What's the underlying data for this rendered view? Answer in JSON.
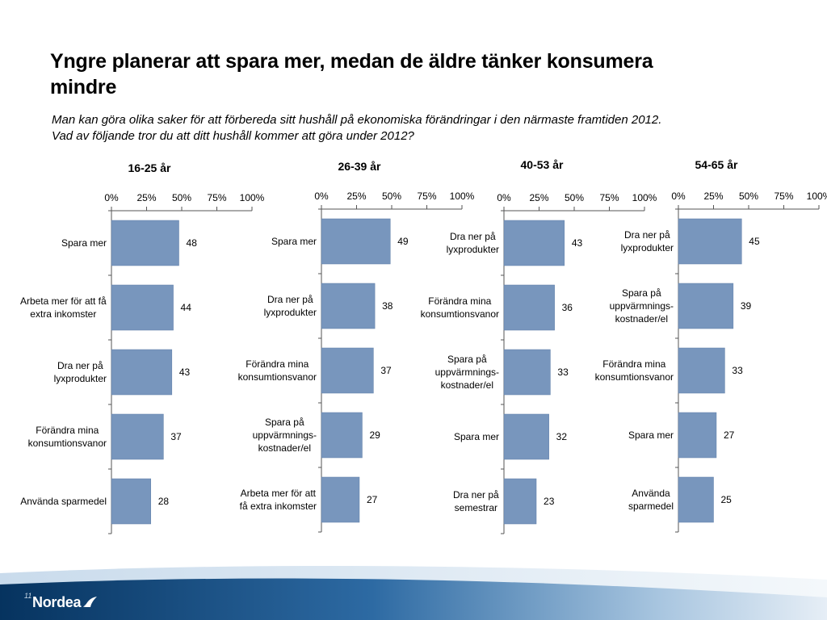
{
  "title": "Yngre planerar att spara mer, medan de äldre tänker konsumera\nmindre",
  "subtitle": "Man kan göra olika saker för att förbereda sitt hushåll på ekonomiska förändringar i den närmaste framtiden 2012.\nVad av följande tror du att ditt hushåll kommer att göra under 2012?",
  "footer": {
    "page_number": "11",
    "logo_text": "Nordea"
  },
  "colors": {
    "bar": "#7896bd",
    "bar_stroke": "#5f7ea8",
    "axis": "#555555",
    "band_dark": "#0a3a6b",
    "band_light": "#dce8f3"
  },
  "chart_data": [
    {
      "type": "bar",
      "orientation": "horizontal",
      "title": "16-25 år",
      "xlim": [
        0,
        100
      ],
      "ticks": [
        "0%",
        "25%",
        "50%",
        "75%",
        "100%"
      ],
      "categories": [
        "Spara mer",
        "Arbeta mer för att få\nextra inkomster",
        "Dra ner på\nlyxprodukter",
        "Förändra mina\nkonsumtionsvanor",
        "Använda sparmedel"
      ],
      "values": [
        48,
        44,
        43,
        37,
        28
      ]
    },
    {
      "type": "bar",
      "orientation": "horizontal",
      "title": "26-39 år",
      "xlim": [
        0,
        100
      ],
      "ticks": [
        "0%",
        "25%",
        "50%",
        "75%",
        "100%"
      ],
      "categories": [
        "Spara mer",
        "Dra ner på\nlyxprodukter",
        "Förändra mina\nkonsumtionsvanor",
        "Spara på\nuppvärmnings-\nkostnader/el",
        "Arbeta mer för att\nfå extra inkomster"
      ],
      "values": [
        49,
        38,
        37,
        29,
        27
      ]
    },
    {
      "type": "bar",
      "orientation": "horizontal",
      "title": "40-53 år",
      "xlim": [
        0,
        100
      ],
      "ticks": [
        "0%",
        "25%",
        "50%",
        "75%",
        "100%"
      ],
      "categories": [
        "Dra ner på\nlyxprodukter",
        "Förändra mina\nkonsumtionsvanor",
        "Spara på\nuppvärmnings-\nkostnader/el",
        "Spara mer",
        "Dra ner på\nsemestrar"
      ],
      "values": [
        43,
        36,
        33,
        32,
        23
      ]
    },
    {
      "type": "bar",
      "orientation": "horizontal",
      "title": "54-65 år",
      "xlim": [
        0,
        100
      ],
      "ticks": [
        "0%",
        "25%",
        "50%",
        "75%",
        "100%"
      ],
      "categories": [
        "Dra ner på\nlyxprodukter",
        "Spara på\nuppvärmnings-\nkostnader/el",
        "Förändra mina\nkonsumtionsvanor",
        "Spara mer",
        "Använda\nsparmedel"
      ],
      "values": [
        45,
        39,
        33,
        27,
        25
      ]
    }
  ]
}
